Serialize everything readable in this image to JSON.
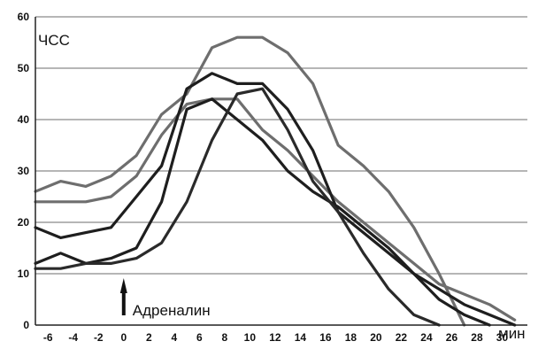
{
  "chart_data": {
    "type": "line",
    "ylabel": "ЧСС",
    "xlabel": "мин",
    "annotation": "Адреналин",
    "annotation_x": 0,
    "xlim": [
      -7,
      32
    ],
    "ylim": [
      0,
      60
    ],
    "x_ticks": [
      -6,
      -4,
      -2,
      0,
      2,
      4,
      6,
      8,
      10,
      12,
      14,
      16,
      18,
      20,
      22,
      24,
      26,
      28,
      30
    ],
    "y_ticks": [
      0,
      10,
      20,
      30,
      40,
      50,
      60
    ],
    "grid": "horizontal",
    "series": [
      {
        "color": "#6e6e6e",
        "x": [
          -7,
          -5,
          -3,
          -1,
          1,
          3,
          5,
          7,
          9,
          11,
          13,
          15,
          17,
          19,
          21,
          23,
          25,
          27
        ],
        "y": [
          26,
          28,
          27,
          29,
          33,
          41,
          45,
          54,
          56,
          56,
          53,
          47,
          35,
          31,
          26,
          19,
          10,
          0
        ]
      },
      {
        "color": "#6e6e6e",
        "x": [
          -7,
          -5,
          -3,
          -1,
          1,
          3,
          5,
          7,
          9,
          11,
          13,
          15,
          17,
          19,
          21,
          23,
          25,
          27,
          29,
          31
        ],
        "y": [
          24,
          24,
          24,
          25,
          29,
          37,
          43,
          44,
          44,
          38,
          34,
          29,
          24,
          20,
          16,
          12,
          8,
          6,
          4,
          1
        ]
      },
      {
        "color": "#1e1e1e",
        "x": [
          -7,
          -5,
          -3,
          -1,
          1,
          3,
          5,
          7,
          9,
          11,
          13,
          15,
          17,
          19,
          21,
          23,
          25,
          27,
          29,
          31
        ],
        "y": [
          19,
          17,
          18,
          19,
          25,
          31,
          46,
          49,
          47,
          47,
          42,
          34,
          22,
          18,
          14,
          10,
          7,
          4,
          2,
          0
        ]
      },
      {
        "color": "#1e1e1e",
        "x": [
          -7,
          -5,
          -3,
          -1,
          1,
          3,
          5,
          7,
          9,
          11,
          13,
          15,
          17,
          19,
          21,
          23,
          25,
          27,
          29
        ],
        "y": [
          12,
          14,
          12,
          13,
          15,
          24,
          42,
          44,
          40,
          36,
          30,
          26,
          23,
          19,
          15,
          10,
          5,
          2,
          0
        ]
      },
      {
        "color": "#2a2a2a",
        "x": [
          -7,
          -5,
          -3,
          -1,
          1,
          3,
          5,
          7,
          9,
          11,
          13,
          15,
          17,
          19,
          21,
          23,
          25
        ],
        "y": [
          11,
          11,
          12,
          12,
          13,
          16,
          24,
          36,
          45,
          46,
          38,
          28,
          22,
          14,
          7,
          2,
          0
        ]
      }
    ]
  }
}
